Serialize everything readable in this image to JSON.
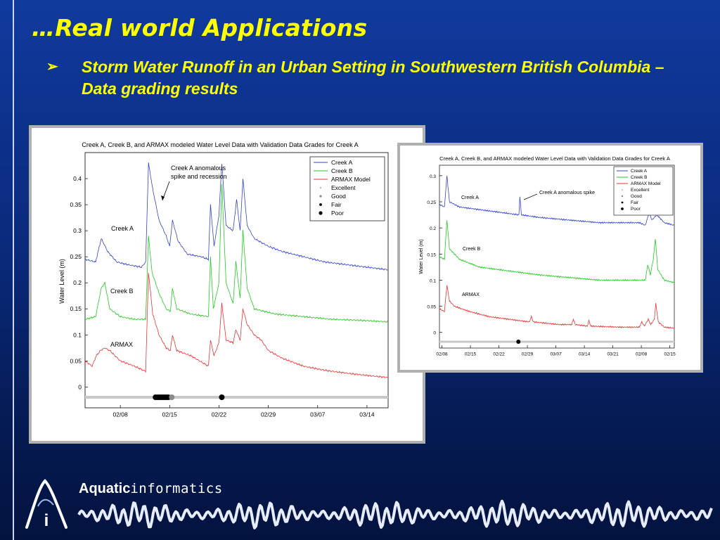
{
  "slide": {
    "title": "…Real world Applications",
    "bullet_text": "Storm Water Runoff in an Urban Setting in Southwestern British Columbia – Data grading results"
  },
  "brand": {
    "word1": "Aquatic",
    "word2": "informatics",
    "logo_letter": "i"
  },
  "colors": {
    "background": "#0a2a7c",
    "title": "#ffff00",
    "creek_a": "#3344cc",
    "creek_b": "#22cc22",
    "armax": "#ee3333"
  },
  "chart_data": [
    {
      "type": "line",
      "title": "Creek A, Creek B, and ARMAX modeled Water Level Data with Validation Data Grades for Creek A",
      "ylabel": "Water Level (m)",
      "xlabel": "",
      "ylim": [
        -0.04,
        0.45
      ],
      "xlim": [
        0,
        43
      ],
      "x_tick_labels": [
        "02/08",
        "02/15",
        "02/22",
        "02/29",
        "03/07",
        "03/14"
      ],
      "x_tick_positions": [
        5,
        12,
        19,
        26,
        33,
        40
      ],
      "y_ticks": [
        0,
        0.05,
        0.1,
        0.15,
        0.2,
        0.25,
        0.3,
        0.35,
        0.4
      ],
      "y_tick_labels": [
        "0",
        "0.05",
        "0.1",
        "0.15",
        "0.2",
        "0.25",
        "0.3",
        "0.35",
        "0.4"
      ],
      "legend": {
        "placement": "top-right",
        "entries": [
          "Creek A",
          "Creek B",
          "ARMAX Model",
          "Excellent",
          "Good",
          "Fair",
          "Poor"
        ]
      },
      "series": [
        {
          "name": "Creek A",
          "points": [
            [
              0,
              0.245
            ],
            [
              1.5,
              0.24
            ],
            [
              2.3,
              0.285
            ],
            [
              3.2,
              0.26
            ],
            [
              4.5,
              0.24
            ],
            [
              6,
              0.235
            ],
            [
              8,
              0.23
            ],
            [
              8.6,
              0.24
            ],
            [
              9,
              0.43
            ],
            [
              9.6,
              0.38
            ],
            [
              10.5,
              0.32
            ],
            [
              11.5,
              0.29
            ],
            [
              12,
              0.27
            ],
            [
              12.4,
              0.32
            ],
            [
              13.2,
              0.28
            ],
            [
              14.5,
              0.255
            ],
            [
              16.5,
              0.25
            ],
            [
              17.5,
              0.245
            ],
            [
              17.8,
              0.35
            ],
            [
              18.3,
              0.27
            ],
            [
              19,
              0.33
            ],
            [
              19.4,
              0.43
            ],
            [
              20,
              0.31
            ],
            [
              21,
              0.3
            ],
            [
              21.5,
              0.36
            ],
            [
              22,
              0.3
            ],
            [
              22.4,
              0.4
            ],
            [
              23,
              0.31
            ],
            [
              24,
              0.285
            ],
            [
              26,
              0.27
            ],
            [
              28,
              0.26
            ],
            [
              31,
              0.25
            ],
            [
              34,
              0.24
            ],
            [
              37,
              0.235
            ],
            [
              40,
              0.23
            ],
            [
              43,
              0.225
            ]
          ]
        },
        {
          "name": "Creek B",
          "points": [
            [
              0,
              0.13
            ],
            [
              1.5,
              0.135
            ],
            [
              2.3,
              0.19
            ],
            [
              2.8,
              0.2
            ],
            [
              3.5,
              0.15
            ],
            [
              5,
              0.135
            ],
            [
              7,
              0.13
            ],
            [
              8.6,
              0.13
            ],
            [
              9,
              0.29
            ],
            [
              9.5,
              0.22
            ],
            [
              10.5,
              0.18
            ],
            [
              11.5,
              0.15
            ],
            [
              12.1,
              0.145
            ],
            [
              12.4,
              0.19
            ],
            [
              13,
              0.15
            ],
            [
              15,
              0.14
            ],
            [
              17.5,
              0.135
            ],
            [
              17.8,
              0.25
            ],
            [
              18.2,
              0.15
            ],
            [
              19,
              0.2
            ],
            [
              19.4,
              0.39
            ],
            [
              20,
              0.2
            ],
            [
              21,
              0.16
            ],
            [
              21.4,
              0.24
            ],
            [
              22,
              0.17
            ],
            [
              22.4,
              0.3
            ],
            [
              23,
              0.19
            ],
            [
              24,
              0.15
            ],
            [
              27,
              0.14
            ],
            [
              31,
              0.135
            ],
            [
              35,
              0.13
            ],
            [
              39,
              0.128
            ],
            [
              43,
              0.125
            ]
          ]
        },
        {
          "name": "ARMAX Model",
          "points": [
            [
              0,
              0.05
            ],
            [
              1,
              0.04
            ],
            [
              1.6,
              0.06
            ],
            [
              2.2,
              0.07
            ],
            [
              2.8,
              0.075
            ],
            [
              3.5,
              0.07
            ],
            [
              5,
              0.05
            ],
            [
              7,
              0.04
            ],
            [
              8.6,
              0.03
            ],
            [
              9,
              0.22
            ],
            [
              9.6,
              0.14
            ],
            [
              10.5,
              0.1
            ],
            [
              11.5,
              0.075
            ],
            [
              12.1,
              0.07
            ],
            [
              12.4,
              0.1
            ],
            [
              13,
              0.07
            ],
            [
              15,
              0.06
            ],
            [
              17.5,
              0.04
            ],
            [
              17.8,
              0.09
            ],
            [
              18.3,
              0.06
            ],
            [
              19,
              0.085
            ],
            [
              19.4,
              0.16
            ],
            [
              20,
              0.09
            ],
            [
              21,
              0.085
            ],
            [
              21.4,
              0.11
            ],
            [
              22,
              0.09
            ],
            [
              22.4,
              0.15
            ],
            [
              23,
              0.12
            ],
            [
              24,
              0.1
            ],
            [
              25,
              0.09
            ],
            [
              26,
              0.07
            ],
            [
              28,
              0.055
            ],
            [
              31,
              0.04
            ],
            [
              34,
              0.032
            ],
            [
              38,
              0.025
            ],
            [
              43,
              0.018
            ]
          ]
        }
      ],
      "grade_points": [
        {
          "grade": "Poor",
          "x": [
            10.0,
            10.3,
            10.6,
            10.9,
            11.2,
            11.5,
            11.8,
            19.4
          ]
        },
        {
          "grade": "Good",
          "x": [
            12.3
          ]
        }
      ],
      "annotations": [
        {
          "text_lines": [
            "Creek A anomalous",
            "spike and recession"
          ]
        },
        {
          "text": "Creek A"
        },
        {
          "text": "Creek B"
        },
        {
          "text": "ARMAX"
        }
      ]
    },
    {
      "type": "line",
      "title": "Creek A, Creek B, and ARMAX modeled Water Level Data with Validation Data Grades for Creek A",
      "ylabel": "Water Level (m)",
      "xlabel": "",
      "ylim": [
        -0.03,
        0.32
      ],
      "xlim": [
        0,
        47
      ],
      "x_tick_labels": [
        "02/08",
        "02/15",
        "02/22",
        "02/29",
        "03/07",
        "03/14",
        "03/21",
        "02/08",
        "02/15"
      ],
      "x_tick_positions": [
        0.5,
        6.2,
        11.9,
        17.6,
        23.3,
        29,
        34.7,
        40.4,
        46.1
      ],
      "y_ticks": [
        0,
        0.05,
        0.1,
        0.15,
        0.2,
        0.25,
        0.3
      ],
      "y_tick_labels": [
        "0",
        "0.05",
        "0.1",
        "0.15",
        "0.2",
        "0.25",
        "0.3"
      ],
      "legend": {
        "placement": "top-right",
        "entries": [
          "Creek A",
          "Creek B",
          "ARMAX Model",
          "Excellent",
          "Good",
          "Fair",
          "Poor"
        ]
      },
      "series": [
        {
          "name": "Creek A",
          "points": [
            [
              0,
              0.245
            ],
            [
              1,
              0.24
            ],
            [
              1.5,
              0.3
            ],
            [
              2,
              0.25
            ],
            [
              4,
              0.24
            ],
            [
              8,
              0.235
            ],
            [
              12,
              0.23
            ],
            [
              15.9,
              0.225
            ],
            [
              16.1,
              0.26
            ],
            [
              16.4,
              0.225
            ],
            [
              20,
              0.22
            ],
            [
              26,
              0.215
            ],
            [
              32,
              0.21
            ],
            [
              40,
              0.21
            ],
            [
              41.2,
              0.205
            ],
            [
              42,
              0.23
            ],
            [
              42.5,
              0.215
            ],
            [
              43.5,
              0.225
            ],
            [
              45,
              0.21
            ],
            [
              47,
              0.205
            ]
          ]
        },
        {
          "name": "Creek B",
          "points": [
            [
              0,
              0.145
            ],
            [
              1,
              0.14
            ],
            [
              1.5,
              0.215
            ],
            [
              2,
              0.16
            ],
            [
              4,
              0.14
            ],
            [
              8,
              0.125
            ],
            [
              12,
              0.12
            ],
            [
              16,
              0.115
            ],
            [
              20,
              0.11
            ],
            [
              26,
              0.105
            ],
            [
              32,
              0.1
            ],
            [
              40,
              0.1
            ],
            [
              41.2,
              0.1
            ],
            [
              41.7,
              0.13
            ],
            [
              42.2,
              0.11
            ],
            [
              42.8,
              0.14
            ],
            [
              43.2,
              0.18
            ],
            [
              43.7,
              0.12
            ],
            [
              45,
              0.1
            ],
            [
              47,
              0.095
            ]
          ]
        },
        {
          "name": "ARMAX Model",
          "points": [
            [
              0,
              0.045
            ],
            [
              1,
              0.04
            ],
            [
              1.5,
              0.09
            ],
            [
              2,
              0.06
            ],
            [
              3,
              0.05
            ],
            [
              6,
              0.04
            ],
            [
              10,
              0.03
            ],
            [
              14,
              0.025
            ],
            [
              18,
              0.02
            ],
            [
              18.4,
              0.03
            ],
            [
              18.8,
              0.02
            ],
            [
              24,
              0.015
            ],
            [
              26.5,
              0.015
            ],
            [
              26.8,
              0.025
            ],
            [
              27.2,
              0.015
            ],
            [
              29.6,
              0.012
            ],
            [
              29.9,
              0.023
            ],
            [
              30.3,
              0.012
            ],
            [
              36,
              0.01
            ],
            [
              40,
              0.01
            ],
            [
              40.5,
              0.02
            ],
            [
              41,
              0.012
            ],
            [
              41.8,
              0.025
            ],
            [
              42.3,
              0.015
            ],
            [
              43,
              0.025
            ],
            [
              43.3,
              0.055
            ],
            [
              43.8,
              0.02
            ],
            [
              45,
              0.01
            ],
            [
              47,
              0.008
            ]
          ]
        }
      ],
      "grade_points": [
        {
          "grade": "Poor",
          "x": [
            15.8
          ]
        }
      ],
      "annotations": [
        {
          "text": "Creek A anomalous spike"
        },
        {
          "text": "Creek A"
        },
        {
          "text": "Creek B"
        },
        {
          "text": "ARMAX"
        }
      ]
    }
  ]
}
